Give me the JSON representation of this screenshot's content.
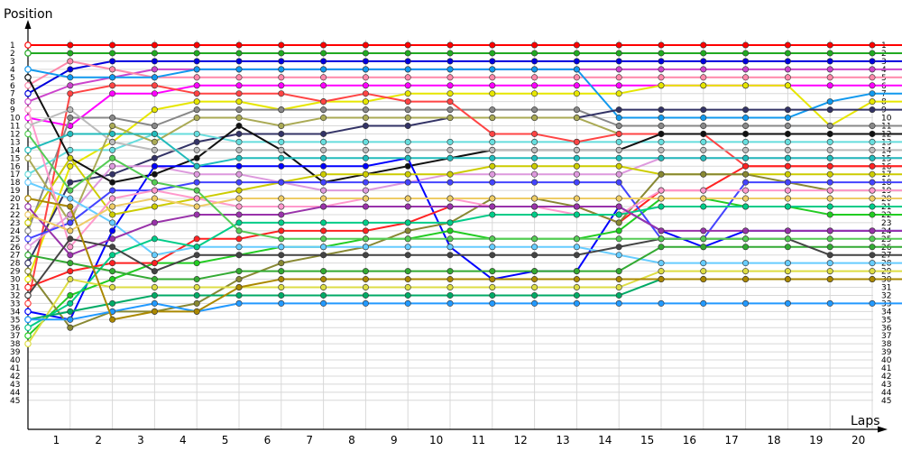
{
  "chart_data": {
    "type": "line",
    "ylabel": "Position",
    "xlabel": "Laps",
    "x_tick_labels": [
      "1",
      "2",
      "3",
      "4",
      "5",
      "6",
      "7",
      "8",
      "9",
      "10",
      "11",
      "12",
      "13",
      "14",
      "15",
      "16",
      "17",
      "18",
      "19",
      "20"
    ],
    "positions": [
      "1",
      "2",
      "3",
      "4",
      "5",
      "6",
      "7",
      "8",
      "9",
      "10",
      "11",
      "12",
      "13",
      "14",
      "15",
      "16",
      "17",
      "18",
      "19",
      "20",
      "21",
      "22",
      "23",
      "24",
      "25",
      "26",
      "27",
      "28",
      "29",
      "30",
      "31",
      "32",
      "33",
      "34",
      "35",
      "36",
      "37",
      "38",
      "39",
      "40",
      "41",
      "42",
      "43",
      "44",
      "45"
    ],
    "grid": true,
    "series": [
      {
        "color": "#ff0000",
        "values": [
          1,
          1,
          1,
          1,
          1,
          1,
          1,
          1,
          1,
          1,
          1,
          1,
          1,
          1,
          1,
          1,
          1,
          1,
          1,
          1,
          1,
          1
        ]
      },
      {
        "color": "#22aa22",
        "values": [
          2,
          2,
          2,
          2,
          2,
          2,
          2,
          2,
          2,
          2,
          2,
          2,
          2,
          2,
          2,
          2,
          2,
          2,
          2,
          2,
          2,
          2
        ]
      },
      {
        "color": "#0000dd",
        "values": [
          7,
          4,
          3,
          3,
          3,
          3,
          3,
          3,
          3,
          3,
          3,
          3,
          3,
          3,
          3,
          3,
          3,
          3,
          3,
          3,
          3,
          3
        ]
      },
      {
        "color": "#cc44cc",
        "values": [
          8,
          6,
          5,
          4,
          4,
          4,
          4,
          4,
          4,
          4,
          4,
          4,
          4,
          4,
          4,
          4,
          4,
          4,
          4,
          4,
          4,
          4
        ]
      },
      {
        "color": "#ff88aa",
        "values": [
          6,
          3,
          4,
          5,
          5,
          5,
          5,
          5,
          5,
          5,
          5,
          5,
          5,
          5,
          5,
          5,
          5,
          5,
          5,
          5,
          5,
          5
        ]
      },
      {
        "color": "#ff00ff",
        "values": [
          10,
          11,
          7,
          7,
          6,
          6,
          6,
          6,
          6,
          6,
          6,
          6,
          6,
          6,
          6,
          6,
          6,
          6,
          6,
          6,
          6,
          6
        ]
      },
      {
        "color": "#e6e600",
        "values": [
          30,
          16,
          13,
          9,
          8,
          8,
          9,
          8,
          8,
          7,
          7,
          7,
          7,
          7,
          7,
          6,
          6,
          6,
          6,
          11,
          8,
          8
        ]
      },
      {
        "color": "#1199ee",
        "values": [
          4,
          5,
          5,
          5,
          4,
          4,
          4,
          4,
          4,
          4,
          4,
          4,
          4,
          4,
          10,
          10,
          10,
          10,
          10,
          8,
          7,
          7
        ]
      },
      {
        "color": "#888888",
        "values": [
          24,
          10,
          10,
          11,
          9,
          9,
          9,
          9,
          9,
          9,
          9,
          9,
          9,
          9,
          11,
          11,
          11,
          11,
          11,
          11,
          11,
          11
        ]
      },
      {
        "color": "#333366",
        "values": [
          28,
          18,
          17,
          15,
          13,
          12,
          12,
          12,
          11,
          11,
          10,
          10,
          10,
          10,
          9,
          9,
          9,
          9,
          9,
          9,
          9,
          9
        ]
      },
      {
        "color": "#66dddd",
        "values": [
          17,
          14,
          14,
          12,
          12,
          13,
          13,
          13,
          13,
          13,
          13,
          13,
          13,
          13,
          13,
          13,
          13,
          13,
          13,
          13,
          13,
          13
        ]
      },
      {
        "color": "#aaaa55",
        "values": [
          15,
          23,
          11,
          13,
          10,
          10,
          11,
          10,
          10,
          10,
          10,
          10,
          10,
          10,
          12,
          12,
          12,
          12,
          12,
          12,
          12,
          12
        ]
      },
      {
        "color": "#ff4444",
        "values": [
          33,
          7,
          6,
          6,
          7,
          7,
          7,
          8,
          7,
          8,
          8,
          12,
          12,
          13,
          12,
          12,
          12,
          16,
          16,
          16,
          16,
          16
        ]
      },
      {
        "color": "#dd99dd",
        "values": [
          26,
          22,
          16,
          16,
          17,
          17,
          18,
          19,
          19,
          18,
          17,
          17,
          17,
          17,
          17,
          15,
          15,
          15,
          15,
          15,
          15,
          15
        ]
      },
      {
        "color": "#111111",
        "values": [
          5,
          15,
          18,
          17,
          15,
          11,
          14,
          18,
          17,
          16,
          15,
          14,
          14,
          14,
          14,
          12,
          12,
          12,
          12,
          12,
          12,
          12
        ]
      },
      {
        "color": "#0000ff",
        "values": [
          34,
          35,
          24,
          16,
          16,
          16,
          16,
          16,
          16,
          15,
          26,
          30,
          29,
          29,
          21,
          24,
          26,
          24,
          24,
          24,
          24,
          24
        ]
      },
      {
        "color": "#cccc00",
        "values": [
          23,
          15,
          22,
          21,
          20,
          19,
          18,
          17,
          17,
          17,
          17,
          16,
          16,
          16,
          16,
          17,
          17,
          17,
          17,
          17,
          17,
          17
        ]
      },
      {
        "color": "#22cc22",
        "values": [
          37,
          32,
          30,
          28,
          28,
          27,
          26,
          26,
          25,
          25,
          24,
          25,
          25,
          25,
          24,
          20,
          20,
          21,
          21,
          22,
          22,
          22
        ]
      },
      {
        "color": "#ff2222",
        "values": [
          31,
          29,
          28,
          28,
          25,
          25,
          24,
          24,
          24,
          23,
          21,
          21,
          21,
          21,
          23,
          19,
          19,
          16,
          16,
          16,
          16,
          16
        ]
      },
      {
        "color": "#888833",
        "values": [
          29,
          36,
          34,
          34,
          33,
          30,
          28,
          27,
          26,
          24,
          23,
          20,
          20,
          21,
          23,
          17,
          17,
          17,
          18,
          19,
          19,
          19
        ]
      },
      {
        "color": "#4444ff",
        "values": [
          25,
          23,
          19,
          19,
          18,
          18,
          18,
          18,
          18,
          18,
          18,
          18,
          18,
          18,
          18,
          25,
          25,
          18,
          18,
          18,
          18,
          18
        ]
      },
      {
        "color": "#66ccff",
        "values": [
          18,
          20,
          23,
          27,
          26,
          26,
          26,
          26,
          26,
          26,
          26,
          26,
          26,
          26,
          27,
          28,
          28,
          28,
          28,
          28,
          28,
          28
        ]
      },
      {
        "color": "#ff99cc",
        "values": [
          9,
          26,
          20,
          19,
          20,
          21,
          21,
          21,
          20,
          20,
          20,
          21,
          21,
          22,
          22,
          19,
          19,
          19,
          19,
          19,
          19,
          19
        ]
      },
      {
        "color": "#00cc88",
        "values": [
          36,
          33,
          27,
          25,
          26,
          23,
          23,
          23,
          23,
          23,
          23,
          22,
          22,
          22,
          22,
          21,
          21,
          21,
          21,
          21,
          21,
          21
        ]
      },
      {
        "color": "#9933aa",
        "values": [
          21,
          27,
          25,
          23,
          22,
          22,
          22,
          21,
          21,
          21,
          21,
          21,
          21,
          21,
          21,
          24,
          24,
          24,
          24,
          24,
          24,
          24
        ]
      },
      {
        "color": "#33aa33",
        "values": [
          27,
          28,
          29,
          30,
          30,
          29,
          29,
          29,
          29,
          29,
          29,
          29,
          29,
          29,
          29,
          26,
          26,
          26,
          26,
          26,
          26,
          26
        ]
      },
      {
        "color": "#bbbbbb",
        "values": [
          11,
          9,
          13,
          14,
          14,
          14,
          14,
          14,
          14,
          14,
          14,
          14,
          14,
          14,
          14,
          14,
          14,
          14,
          14,
          14,
          14,
          14
        ]
      },
      {
        "color": "#22bbbb",
        "values": [
          14,
          12,
          12,
          12,
          16,
          15,
          15,
          15,
          15,
          15,
          15,
          15,
          15,
          15,
          15,
          15,
          15,
          15,
          15,
          15,
          15,
          15
        ]
      },
      {
        "color": "#444444",
        "values": [
          32,
          25,
          26,
          29,
          27,
          27,
          27,
          27,
          27,
          27,
          27,
          27,
          27,
          27,
          26,
          25,
          25,
          25,
          25,
          27,
          27,
          27
        ]
      },
      {
        "color": "#dddd44",
        "values": [
          38,
          30,
          31,
          31,
          31,
          31,
          31,
          31,
          31,
          31,
          31,
          31,
          31,
          31,
          31,
          29,
          29,
          29,
          29,
          29,
          29,
          29
        ]
      },
      {
        "color": "#00aa66",
        "values": [
          35,
          34,
          33,
          32,
          32,
          32,
          32,
          32,
          32,
          32,
          32,
          32,
          32,
          32,
          32,
          30,
          30,
          30,
          30,
          30,
          30,
          30
        ]
      },
      {
        "color": "#2299ff",
        "values": [
          35,
          35,
          34,
          33,
          34,
          33,
          33,
          33,
          33,
          33,
          33,
          33,
          33,
          33,
          33,
          33,
          33,
          33,
          33,
          33,
          33,
          33
        ]
      },
      {
        "color": "#aa8800",
        "values": [
          20,
          21,
          35,
          34,
          34,
          31,
          30,
          30,
          30,
          30,
          30,
          30,
          30,
          30,
          30,
          30,
          30,
          30,
          30,
          30,
          30,
          30
        ]
      },
      {
        "color": "#eecc66",
        "values": [
          22,
          24,
          21,
          20,
          21,
          20,
          20,
          20,
          20,
          20,
          20,
          20,
          20,
          20,
          20,
          20,
          20,
          20,
          20,
          20,
          20,
          20
        ]
      },
      {
        "color": "#55cc55",
        "values": [
          12,
          19,
          15,
          18,
          19,
          24,
          25,
          25,
          25,
          25,
          25,
          25,
          25,
          25,
          25,
          25,
          25,
          25,
          25,
          25,
          25,
          25
        ]
      }
    ]
  }
}
